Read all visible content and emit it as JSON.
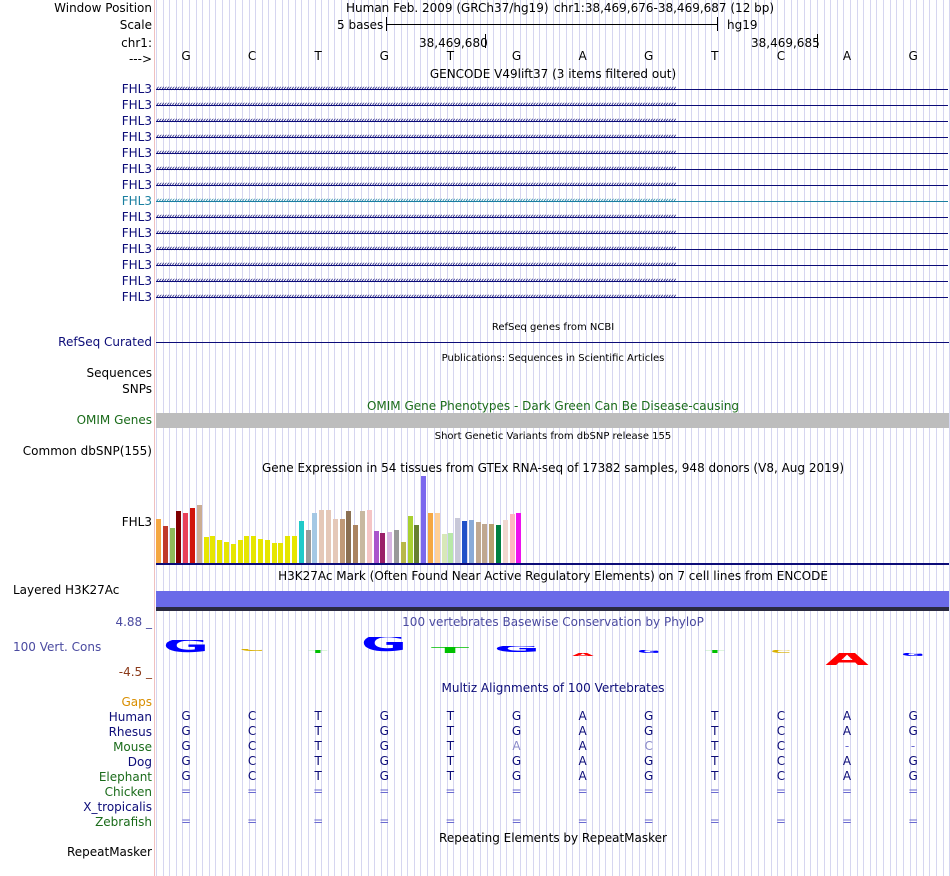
{
  "header": {
    "window_position_label": "Window Position",
    "scale_label": "Scale",
    "chr_label": "chr1:",
    "arrow_label": "--->",
    "assembly": "Human Feb. 2009 (GRCh37/hg19)",
    "position": "chr1:38,469,676-38,469,687 (12 bp)",
    "scale_text": "5 bases",
    "scale_db": "hg19",
    "coord1": "38,469,680",
    "coord2": "38,469,685"
  },
  "bases": [
    "G",
    "C",
    "T",
    "G",
    "T",
    "G",
    "A",
    "G",
    "T",
    "C",
    "A",
    "G"
  ],
  "gencode": {
    "title": "GENCODE V49lift37 (3 items filtered out)",
    "genes": [
      "FHL3",
      "FHL3",
      "FHL3",
      "FHL3",
      "FHL3",
      "FHL3",
      "FHL3",
      "FHL3",
      "FHL3",
      "FHL3",
      "FHL3",
      "FHL3",
      "FHL3",
      "FHL3"
    ],
    "colors": [
      "#0c0c78",
      "#0c0c78",
      "#0c0c78",
      "#0c0c78",
      "#0c0c78",
      "#0c0c78",
      "#0c0c78",
      "#1a7fa0",
      "#0c0c78",
      "#0c0c78",
      "#0c0c78",
      "#0c0c78",
      "#0c0c78",
      "#0c0c78"
    ]
  },
  "refseq": {
    "title": "RefSeq genes from NCBI",
    "label": "RefSeq Curated"
  },
  "publications": {
    "title": "Publications: Sequences in Scientific Articles",
    "label1": "Sequences",
    "label2": "SNPs"
  },
  "omim": {
    "title": "OMIM Gene Phenotypes - Dark Green Can Be Disease-causing",
    "label": "OMIM Genes"
  },
  "dbsnp": {
    "title": "Short Genetic Variants from dbSNP release 155",
    "label": "Common dbSNP(155)"
  },
  "gtex": {
    "title": "Gene Expression in 54 tissues from GTEx RNA-seq of 17382 samples, 948 donors (V8, Aug 2019)",
    "label": "FHL3",
    "bars": [
      {
        "v": 0.5,
        "c": "#f5a742"
      },
      {
        "v": 0.42,
        "c": "#c0392b"
      },
      {
        "v": 0.4,
        "c": "#8fbc5a"
      },
      {
        "v": 0.6,
        "c": "#800000"
      },
      {
        "v": 0.58,
        "c": "#e8405a"
      },
      {
        "v": 0.63,
        "c": "#d1150c"
      },
      {
        "v": 0.67,
        "c": "#cbad93"
      },
      {
        "v": 0.3,
        "c": "#e6e600"
      },
      {
        "v": 0.31,
        "c": "#e6e600"
      },
      {
        "v": 0.27,
        "c": "#e6e600"
      },
      {
        "v": 0.24,
        "c": "#e6e600"
      },
      {
        "v": 0.22,
        "c": "#e6e600"
      },
      {
        "v": 0.27,
        "c": "#e6e600"
      },
      {
        "v": 0.31,
        "c": "#e6e600"
      },
      {
        "v": 0.31,
        "c": "#e6e600"
      },
      {
        "v": 0.28,
        "c": "#e6e600"
      },
      {
        "v": 0.26,
        "c": "#e6e600"
      },
      {
        "v": 0.23,
        "c": "#e6e600"
      },
      {
        "v": 0.23,
        "c": "#e6e600"
      },
      {
        "v": 0.31,
        "c": "#e6e600"
      },
      {
        "v": 0.31,
        "c": "#e6e600"
      },
      {
        "v": 0.48,
        "c": "#1fc9c9"
      },
      {
        "v": 0.38,
        "c": "#999999"
      },
      {
        "v": 0.58,
        "c": "#a4c8e4"
      },
      {
        "v": 0.61,
        "c": "#e5c8b8"
      },
      {
        "v": 0.61,
        "c": "#e5c8b8"
      },
      {
        "v": 0.51,
        "c": "#e5c8b8"
      },
      {
        "v": 0.51,
        "c": "#c09a78"
      },
      {
        "v": 0.6,
        "c": "#8b7053"
      },
      {
        "v": 0.44,
        "c": "#ab8460"
      },
      {
        "v": 0.6,
        "c": "#c8b8a0"
      },
      {
        "v": 0.61,
        "c": "#f5c5c5"
      },
      {
        "v": 0.37,
        "c": "#aa55cc"
      },
      {
        "v": 0.34,
        "c": "#9b1f6a"
      },
      {
        "v": 0.36,
        "c": "#d8b4e2"
      },
      {
        "v": 0.38,
        "c": "#999999"
      },
      {
        "v": 0.24,
        "c": "#b8b84a"
      },
      {
        "v": 0.54,
        "c": "#a8d030"
      },
      {
        "v": 0.44,
        "c": "#668030"
      },
      {
        "v": 1.0,
        "c": "#7b68ee"
      },
      {
        "v": 0.58,
        "c": "#f5a742"
      },
      {
        "v": 0.57,
        "c": "#ffd098"
      },
      {
        "v": 0.33,
        "c": "#d8e8b8"
      },
      {
        "v": 0.34,
        "c": "#b8e8a8"
      },
      {
        "v": 0.52,
        "c": "#c8c8d8"
      },
      {
        "v": 0.48,
        "c": "#2050c8"
      },
      {
        "v": 0.49,
        "c": "#89aad8"
      },
      {
        "v": 0.47,
        "c": "#c0a890"
      },
      {
        "v": 0.45,
        "c": "#c0a890"
      },
      {
        "v": 0.45,
        "c": "#b8a070"
      },
      {
        "v": 0.44,
        "c": "#008040"
      },
      {
        "v": 0.49,
        "c": "#f0d8d0"
      },
      {
        "v": 0.56,
        "c": "#ffb6c1"
      },
      {
        "v": 0.58,
        "c": "#ee11ee"
      }
    ]
  },
  "h3k27ac": {
    "title": "H3K27Ac Mark (Often Found Near Active Regulatory Elements) on 7 cell lines from ENCODE",
    "label": "Layered H3K27Ac"
  },
  "phylop": {
    "title": "100 vertebrates Basewise Conservation by PhyloP",
    "label": "100 Vert. Cons",
    "max": "4.88 _",
    "min": "-4.5 _",
    "scores": [
      2.2,
      0.6,
      0.2,
      2.6,
      1.0,
      1.2,
      -0.3,
      0.2,
      0.4,
      0.1,
      -2.2,
      -0.4
    ],
    "colors": [
      "#0000ff",
      "#d8b000",
      "#00c000",
      "#0000ff",
      "#00c000",
      "#0000ff",
      "#ff0000",
      "#0000ff",
      "#00c000",
      "#d8b000",
      "#ff0000",
      "#0000ff"
    ]
  },
  "multiz": {
    "title": "Multiz Alignments of 100 Vertebrates",
    "gaps_label": "Gaps",
    "species": [
      {
        "name": "Human",
        "color": "#0c0c78",
        "seq": [
          "G",
          "C",
          "T",
          "G",
          "T",
          "G",
          "A",
          "G",
          "T",
          "C",
          "A",
          "G"
        ]
      },
      {
        "name": "Rhesus",
        "color": "#0c0c78",
        "seq": [
          "G",
          "C",
          "T",
          "G",
          "T",
          "G",
          "A",
          "G",
          "T",
          "C",
          "A",
          "G"
        ]
      },
      {
        "name": "Mouse",
        "color": "#1a6b1a",
        "seq": [
          "G",
          "C",
          "T",
          "G",
          "T",
          "A",
          "A",
          "C",
          "T",
          "C",
          "-",
          "-"
        ]
      },
      {
        "name": "Dog",
        "color": "#0c0c78",
        "seq": [
          "G",
          "C",
          "T",
          "G",
          "T",
          "G",
          "A",
          "G",
          "T",
          "C",
          "A",
          "G"
        ]
      },
      {
        "name": "Elephant",
        "color": "#1a6b1a",
        "seq": [
          "G",
          "C",
          "T",
          "G",
          "T",
          "G",
          "A",
          "G",
          "T",
          "C",
          "A",
          "G"
        ]
      },
      {
        "name": "Chicken",
        "color": "#1a6b1a",
        "seq": [
          "=",
          "=",
          "=",
          "=",
          "=",
          "=",
          "=",
          "=",
          "=",
          "=",
          "=",
          "="
        ]
      },
      {
        "name": "X_tropicalis",
        "color": "#0c0c78",
        "seq": [
          "",
          "",
          "",
          "",
          "",
          "",
          "",
          "",
          "",
          "",
          "",
          ""
        ]
      },
      {
        "name": "Zebrafish",
        "color": "#1a6b1a",
        "seq": [
          "=",
          "=",
          "=",
          "=",
          "=",
          "=",
          "=",
          "=",
          "=",
          "=",
          "=",
          "="
        ]
      }
    ]
  },
  "repeatmasker": {
    "title": "Repeating Elements by RepeatMasker",
    "label": "RepeatMasker"
  },
  "theme": {
    "navy": "#0c0c78",
    "green": "#1a6b1a",
    "phylop_blue": "#4a4aa0",
    "gap_orange": "#d88e00",
    "omim_gray": "#bdbdbd",
    "h3_blue": "#6a6ae8"
  }
}
